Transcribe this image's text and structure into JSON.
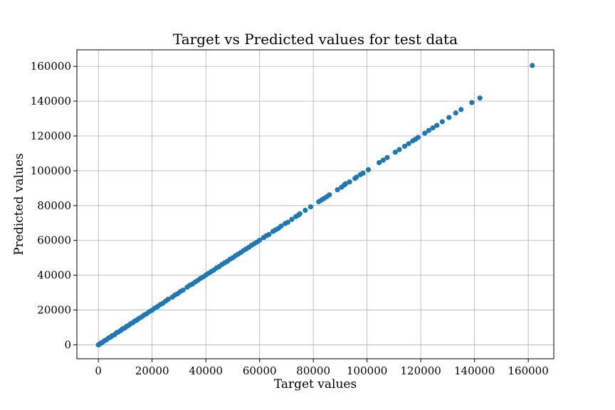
{
  "chart_data": {
    "type": "scatter",
    "title": "Target vs Predicted values for test data",
    "xlabel": "Target values",
    "ylabel": "Predicted values",
    "xlim": [
      -8000,
      169500
    ],
    "ylim": [
      -8000,
      169500
    ],
    "xticks": [
      0,
      20000,
      40000,
      60000,
      80000,
      100000,
      120000,
      140000,
      160000
    ],
    "yticks": [
      0,
      20000,
      40000,
      60000,
      80000,
      100000,
      120000,
      140000,
      160000
    ],
    "grid": true,
    "point_color": "#1f77b4",
    "series": [
      {
        "points": [
          [
            0,
            0
          ],
          [
            300,
            200
          ],
          [
            800,
            900
          ],
          [
            1500,
            1400
          ],
          [
            2200,
            2300
          ],
          [
            3000,
            2900
          ],
          [
            3800,
            3900
          ],
          [
            4500,
            4400
          ],
          [
            5200,
            5300
          ],
          [
            6000,
            5800
          ],
          [
            6800,
            7000
          ],
          [
            7500,
            7400
          ],
          [
            8300,
            8200
          ],
          [
            9000,
            9200
          ],
          [
            9800,
            9600
          ],
          [
            10500,
            10600
          ],
          [
            11300,
            11200
          ],
          [
            12000,
            12100
          ],
          [
            12800,
            12700
          ],
          [
            13500,
            13600
          ],
          [
            14300,
            14200
          ],
          [
            15000,
            15100
          ],
          [
            16000,
            15900
          ],
          [
            17000,
            17100
          ],
          [
            18000,
            17900
          ],
          [
            19000,
            19100
          ],
          [
            20000,
            19900
          ],
          [
            21000,
            21100
          ],
          [
            22000,
            21900
          ],
          [
            23000,
            23100
          ],
          [
            24000,
            23900
          ],
          [
            25000,
            25100
          ],
          [
            26000,
            26200
          ],
          [
            27500,
            27400
          ],
          [
            28500,
            28600
          ],
          [
            29500,
            29400
          ],
          [
            30500,
            30600
          ],
          [
            31500,
            31400
          ],
          [
            33000,
            33100
          ],
          [
            34000,
            34200
          ],
          [
            35000,
            34900
          ],
          [
            36000,
            36100
          ],
          [
            37000,
            37000
          ],
          [
            38000,
            38200
          ],
          [
            39000,
            39000
          ],
          [
            40000,
            40100
          ],
          [
            41000,
            41100
          ],
          [
            42000,
            42100
          ],
          [
            43000,
            43000
          ],
          [
            44000,
            44200
          ],
          [
            45000,
            45000
          ],
          [
            46000,
            46200
          ],
          [
            47000,
            47100
          ],
          [
            48000,
            48000
          ],
          [
            49000,
            49200
          ],
          [
            50000,
            50000
          ],
          [
            51000,
            51200
          ],
          [
            52000,
            52100
          ],
          [
            53000,
            53000
          ],
          [
            54000,
            54200
          ],
          [
            55000,
            55100
          ],
          [
            56000,
            56000
          ],
          [
            57000,
            57200
          ],
          [
            58000,
            58100
          ],
          [
            59000,
            59000
          ],
          [
            60000,
            60100
          ],
          [
            61500,
            61600
          ],
          [
            62500,
            62700
          ],
          [
            63500,
            63400
          ],
          [
            65000,
            65200
          ],
          [
            66000,
            66100
          ],
          [
            67000,
            66900
          ],
          [
            68000,
            68200
          ],
          [
            69500,
            69700
          ],
          [
            70500,
            70400
          ],
          [
            72000,
            72100
          ],
          [
            73500,
            73700
          ],
          [
            74500,
            74600
          ],
          [
            75000,
            75300
          ],
          [
            77000,
            77300
          ],
          [
            79000,
            79300
          ],
          [
            82000,
            82200
          ],
          [
            83000,
            83200
          ],
          [
            84000,
            84100
          ],
          [
            85000,
            85100
          ],
          [
            86000,
            86200
          ],
          [
            89000,
            89100
          ],
          [
            90500,
            90600
          ],
          [
            91500,
            91800
          ],
          [
            92000,
            92500
          ],
          [
            93500,
            93600
          ],
          [
            95500,
            95600
          ],
          [
            96000,
            96300
          ],
          [
            97500,
            97800
          ],
          [
            98500,
            98600
          ],
          [
            100500,
            100600
          ],
          [
            104500,
            104700
          ],
          [
            106000,
            106100
          ],
          [
            107500,
            107600
          ],
          [
            110500,
            110700
          ],
          [
            112000,
            112200
          ],
          [
            114000,
            114100
          ],
          [
            115500,
            115600
          ],
          [
            117000,
            117200
          ],
          [
            118000,
            118100
          ],
          [
            119000,
            119200
          ],
          [
            121500,
            121600
          ],
          [
            123000,
            123200
          ],
          [
            124500,
            124700
          ],
          [
            126000,
            126100
          ],
          [
            128000,
            128200
          ],
          [
            130500,
            130600
          ],
          [
            133000,
            133200
          ],
          [
            135000,
            135200
          ],
          [
            139000,
            139200
          ],
          [
            142000,
            141800
          ],
          [
            161500,
            160500
          ]
        ]
      }
    ]
  }
}
